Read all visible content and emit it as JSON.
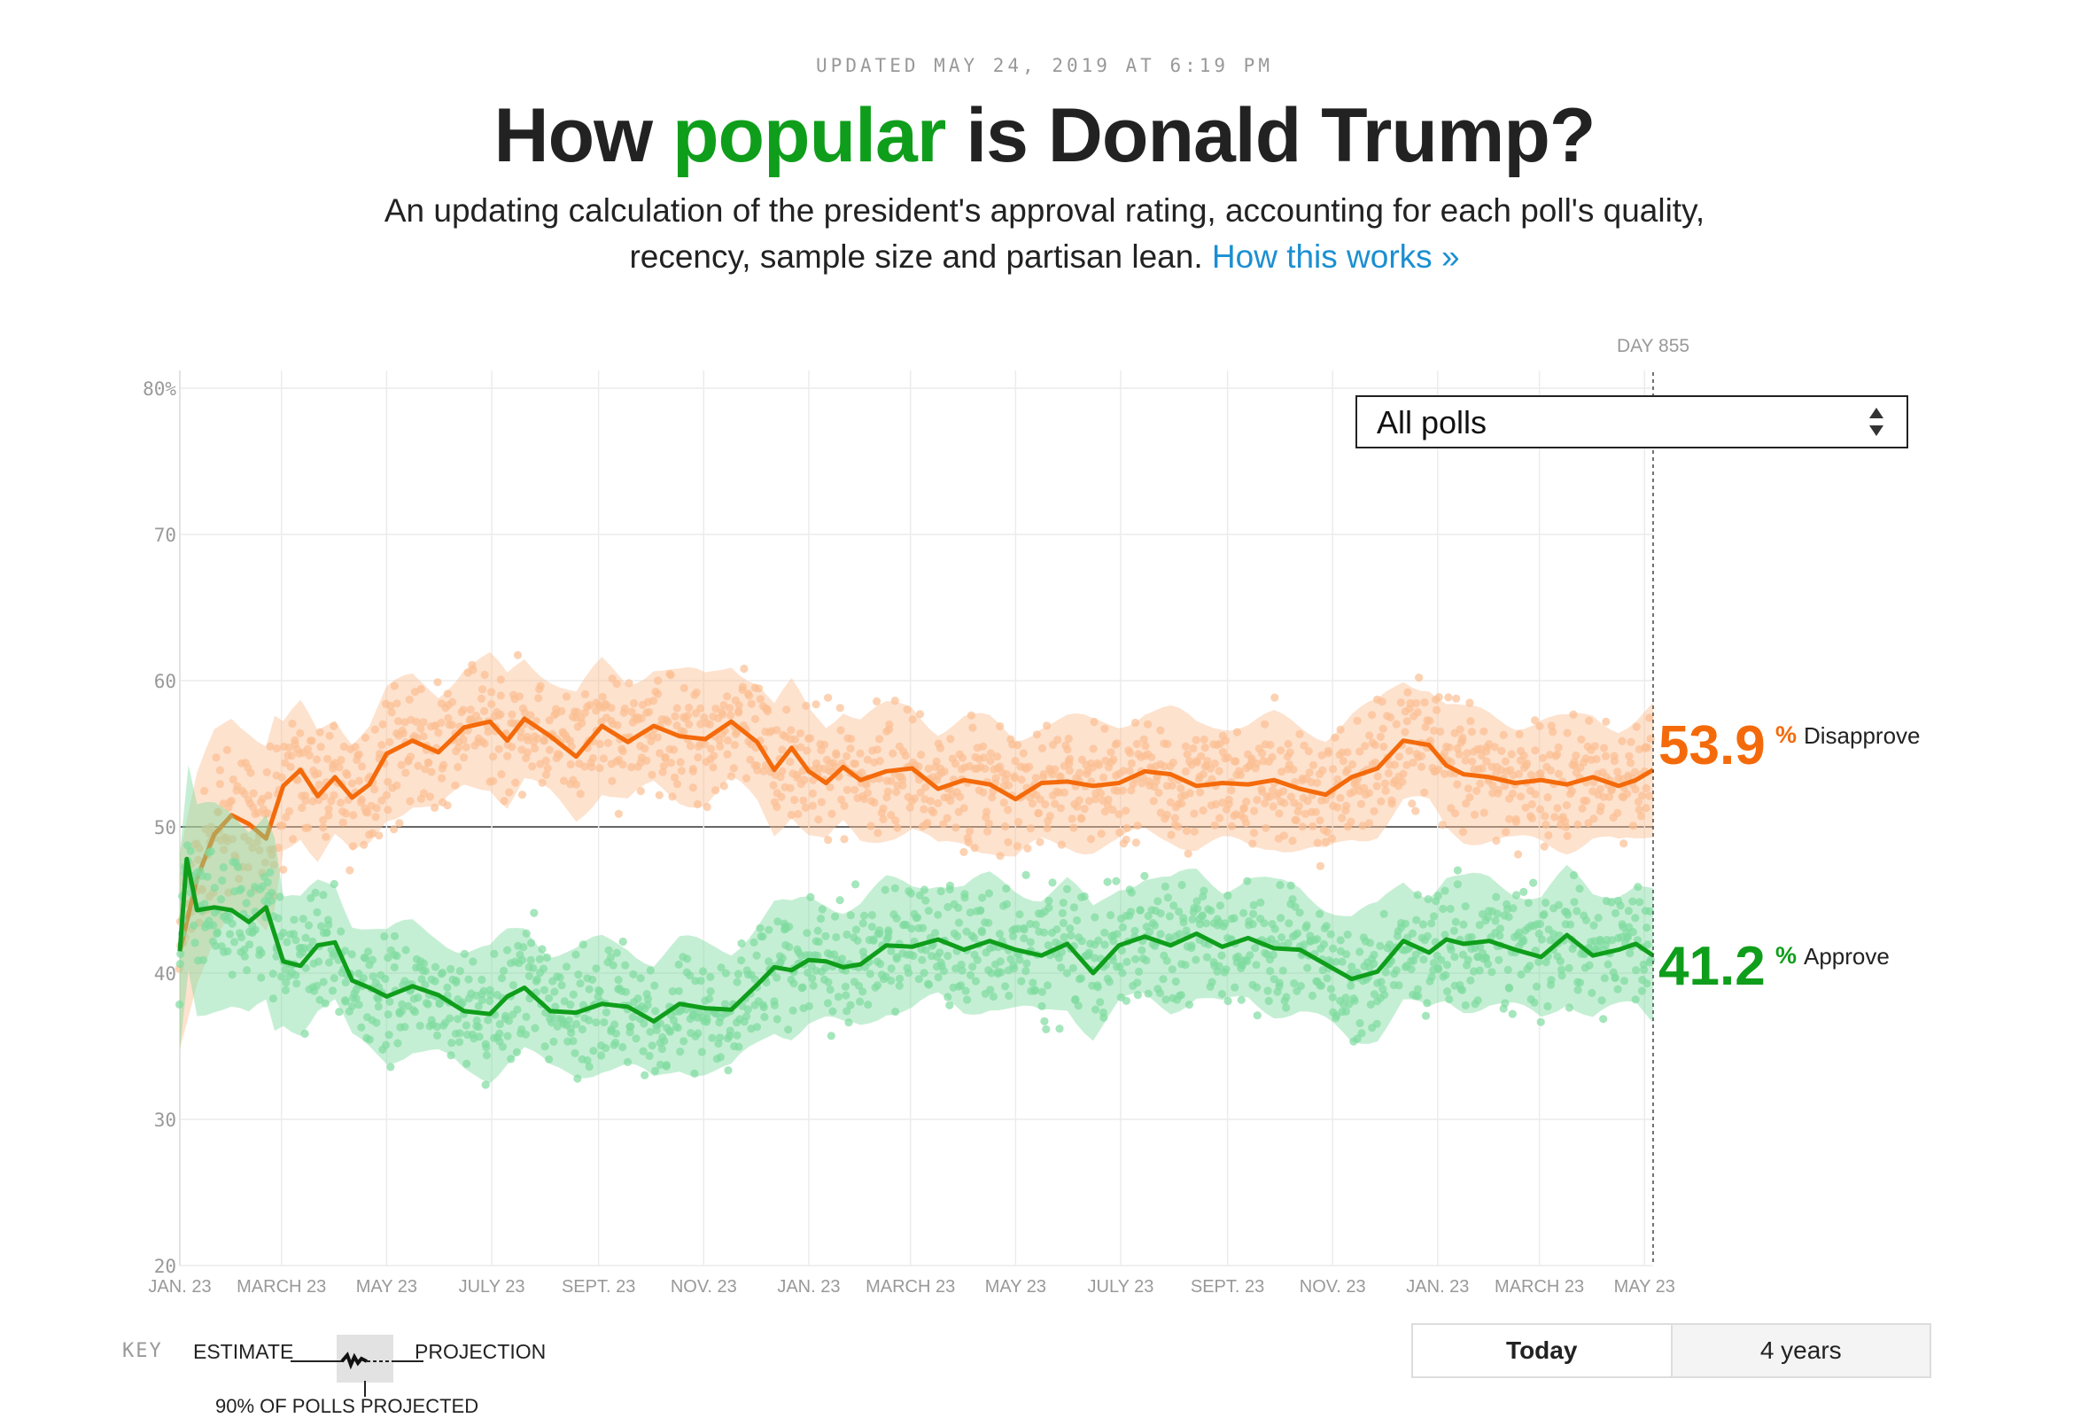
{
  "header": {
    "updated": "UPDATED MAY 24, 2019 AT 6:19 PM",
    "title_before": "How ",
    "title_highlight": "popular",
    "title_after": " is Donald Trump?",
    "subtitle_line1": "An updating calculation of the president's approval rating, accounting for each poll's quality,",
    "subtitle_line2": "recency, sample size and partisan lean. ",
    "subtitle_link": "How this works »"
  },
  "controls": {
    "poll_filter": "All polls",
    "time_toggle": [
      "Today",
      "4 years"
    ],
    "time_selected": "Today"
  },
  "key": {
    "label": "KEY",
    "estimate": "ESTIMATE",
    "projection": "PROJECTION",
    "note": "90% OF POLLS PROJECTED"
  },
  "colors": {
    "approve": "#0f9e1b",
    "disapprove": "#f46a0a",
    "approve_light": "#7fdca0",
    "disapprove_light": "#fbbf93",
    "link": "#1b8fd1"
  },
  "chart_data": {
    "type": "line",
    "marker_label": "DAY 855",
    "y_ticks": [
      "80%",
      "70",
      "60",
      "50",
      "40",
      "30",
      "20"
    ],
    "ylim": [
      20,
      80
    ],
    "x_ticks": [
      "JAN. 23",
      "MARCH 23",
      "MAY 23",
      "JULY 23",
      "SEPT. 23",
      "NOV. 23",
      "JAN. 23",
      "MARCH 23",
      "MAY 23",
      "JULY 23",
      "SEPT. 23",
      "NOV. 23",
      "JAN. 23",
      "MARCH 23",
      "MAY 23"
    ],
    "x_tick_days": [
      0,
      59,
      120,
      181,
      243,
      304,
      365,
      424,
      485,
      546,
      608,
      669,
      730,
      789,
      850
    ],
    "x_range_days": [
      0,
      855
    ],
    "grid": true,
    "series": [
      {
        "name": "Disapprove",
        "final_value": "53.9",
        "x_days": [
          0,
          10,
          20,
          30,
          40,
          50,
          60,
          70,
          80,
          90,
          100,
          110,
          120,
          135,
          150,
          165,
          180,
          190,
          200,
          215,
          230,
          245,
          260,
          275,
          290,
          305,
          320,
          335,
          345,
          355,
          365,
          375,
          385,
          395,
          410,
          425,
          440,
          455,
          470,
          485,
          500,
          515,
          530,
          545,
          560,
          575,
          590,
          605,
          620,
          635,
          650,
          665,
          680,
          695,
          710,
          725,
          735,
          745,
          760,
          775,
          790,
          805,
          820,
          835,
          845,
          855
        ],
        "values": [
          41.5,
          46.5,
          49.5,
          50.8,
          50.2,
          49.2,
          52.8,
          53.9,
          52.1,
          53.4,
          52.0,
          52.9,
          55.0,
          55.9,
          55.1,
          56.8,
          57.2,
          55.9,
          57.4,
          56.2,
          54.8,
          56.9,
          55.8,
          56.9,
          56.2,
          56.0,
          57.2,
          55.8,
          53.9,
          55.4,
          53.8,
          53.0,
          54.1,
          53.2,
          53.8,
          54.0,
          52.6,
          53.2,
          52.9,
          51.9,
          53.0,
          53.1,
          52.8,
          53.0,
          53.8,
          53.6,
          52.8,
          53.0,
          52.9,
          53.2,
          52.6,
          52.2,
          53.4,
          54.0,
          55.9,
          55.6,
          54.2,
          53.6,
          53.4,
          53.0,
          53.2,
          52.9,
          53.4,
          52.8,
          53.2,
          53.9
        ]
      },
      {
        "name": "Approve",
        "final_value": "41.2",
        "x_days": [
          0,
          4,
          10,
          20,
          30,
          40,
          50,
          60,
          70,
          80,
          90,
          100,
          110,
          120,
          135,
          150,
          165,
          180,
          190,
          200,
          215,
          230,
          245,
          260,
          275,
          290,
          305,
          320,
          335,
          345,
          355,
          365,
          375,
          385,
          395,
          410,
          425,
          440,
          455,
          470,
          485,
          500,
          515,
          530,
          545,
          560,
          575,
          590,
          605,
          620,
          635,
          650,
          665,
          680,
          695,
          710,
          725,
          735,
          745,
          760,
          775,
          790,
          805,
          820,
          835,
          845,
          855
        ],
        "values": [
          41.5,
          47.8,
          44.3,
          44.5,
          44.3,
          43.5,
          44.5,
          40.8,
          40.5,
          41.9,
          42.1,
          39.5,
          39.0,
          38.4,
          39.1,
          38.5,
          37.4,
          37.2,
          38.4,
          39.0,
          37.4,
          37.3,
          37.9,
          37.7,
          36.7,
          37.9,
          37.6,
          37.5,
          39.2,
          40.4,
          40.2,
          40.9,
          40.8,
          40.4,
          40.6,
          41.9,
          41.8,
          42.3,
          41.6,
          42.2,
          41.6,
          41.2,
          42.0,
          40.0,
          41.9,
          42.5,
          41.9,
          42.7,
          41.8,
          42.4,
          41.7,
          41.6,
          40.6,
          39.6,
          40.1,
          42.2,
          41.4,
          42.3,
          42.0,
          42.2,
          41.6,
          41.1,
          42.6,
          41.2,
          41.6,
          42.0,
          41.2
        ]
      }
    ]
  }
}
